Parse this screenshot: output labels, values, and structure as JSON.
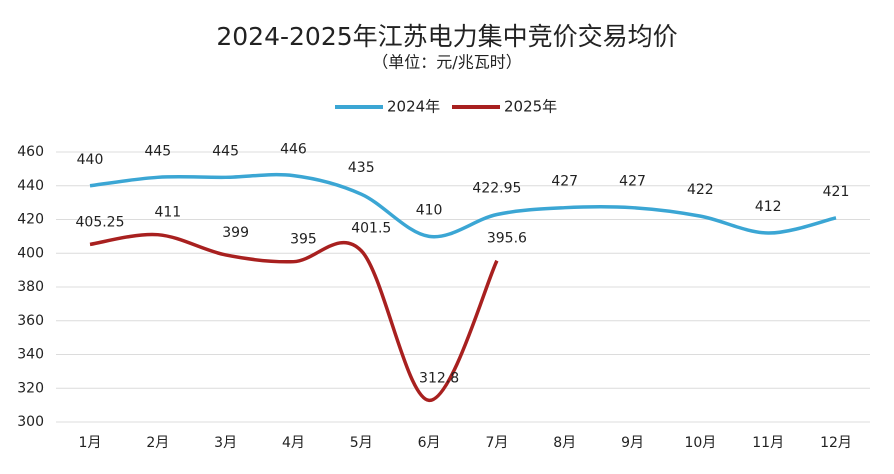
{
  "chart_data": {
    "type": "line",
    "title": "2024-2025年江苏电力集中竞价交易均价",
    "subtitle": "（单位：元/兆瓦时）",
    "categories": [
      "1月",
      "2月",
      "3月",
      "4月",
      "5月",
      "6月",
      "7月",
      "8月",
      "9月",
      "10月",
      "11月",
      "12月"
    ],
    "series": [
      {
        "name": "2024年",
        "color": "#3ba6d4",
        "values": [
          440,
          445,
          445,
          446,
          435,
          410,
          422.95,
          427,
          427,
          422,
          412,
          421
        ]
      },
      {
        "name": "2025年",
        "color": "#a8201f",
        "values": [
          405.25,
          411,
          399,
          395,
          401.5,
          312.8,
          395.6,
          null,
          null,
          null,
          null,
          null
        ]
      }
    ],
    "ylim": [
      300,
      460
    ],
    "yticks": [
      300,
      320,
      340,
      360,
      380,
      400,
      420,
      440,
      460
    ],
    "grid": true,
    "legend": "top",
    "smooth": true
  }
}
